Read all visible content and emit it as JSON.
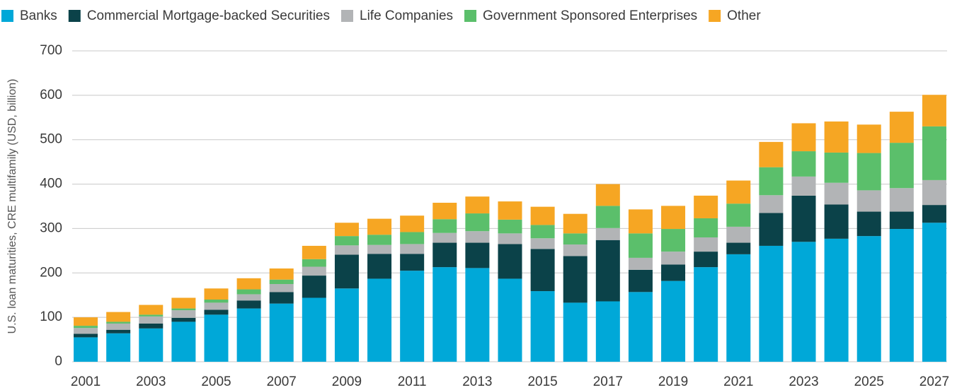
{
  "chart_data": {
    "type": "stacked-bar",
    "y_label": "U.S. loan maturities, CRE multifamily (USD, billion)",
    "categories": [
      "2001",
      null,
      "2003",
      null,
      "2005",
      null,
      "2007",
      null,
      "2009",
      null,
      "2011",
      null,
      "2013",
      null,
      "2015",
      null,
      "2017",
      null,
      "2019",
      null,
      "2021",
      null,
      "2023",
      null,
      "2025",
      null,
      "2027"
    ],
    "series": [
      {
        "name": "Banks",
        "color": "#00a8d8",
        "values": [
          55,
          64,
          75,
          90,
          106,
          120,
          131,
          144,
          165,
          187,
          205,
          213,
          211,
          187,
          159,
          133,
          136,
          157,
          182,
          213,
          242,
          261,
          270,
          277,
          283,
          299,
          313
        ]
      },
      {
        "name": "Commercial Mortgage-backed Securities",
        "color": "#0b4249",
        "values": [
          8,
          8,
          11,
          9,
          11,
          18,
          26,
          50,
          76,
          56,
          38,
          55,
          57,
          78,
          95,
          105,
          138,
          50,
          37,
          35,
          26,
          74,
          104,
          77,
          55,
          39,
          40
        ]
      },
      {
        "name": "Life Companies",
        "color": "#b2b4b6",
        "values": [
          13,
          14,
          16,
          17,
          16,
          14,
          18,
          20,
          21,
          20,
          22,
          22,
          26,
          24,
          24,
          26,
          27,
          27,
          29,
          32,
          36,
          40,
          43,
          49,
          48,
          53,
          56
        ]
      },
      {
        "name": "Government Sponsored Enterprises",
        "color": "#5bbf6b",
        "values": [
          5,
          4,
          4,
          4,
          7,
          11,
          10,
          17,
          21,
          23,
          27,
          31,
          40,
          31,
          30,
          25,
          50,
          55,
          51,
          43,
          52,
          63,
          57,
          68,
          84,
          102,
          121
        ]
      },
      {
        "name": "Other",
        "color": "#f6a623",
        "values": [
          19,
          22,
          22,
          24,
          25,
          25,
          25,
          30,
          30,
          36,
          37,
          37,
          38,
          41,
          41,
          44,
          49,
          54,
          52,
          51,
          52,
          57,
          63,
          70,
          64,
          70,
          71
        ]
      }
    ],
    "ylim": [
      0,
      700
    ],
    "yticks": [
      0,
      100,
      200,
      300,
      400,
      500,
      600,
      700
    ],
    "grid": true,
    "legend": "top"
  }
}
